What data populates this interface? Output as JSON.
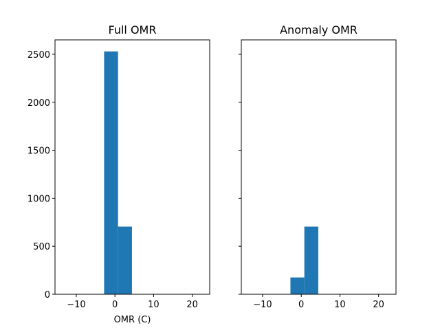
{
  "chart_data": [
    {
      "type": "bar",
      "title": "Full OMR",
      "xlabel": "OMR (C)",
      "ylabel": "",
      "xlim": [
        -15.5,
        24.5
      ],
      "ylim": [
        0,
        2650
      ],
      "xticks": [
        -10,
        0,
        10,
        20
      ],
      "yticks": [
        0,
        500,
        1000,
        1500,
        2000,
        2500
      ],
      "show_yticklabels": true,
      "color": "#1f77b4",
      "bins": [
        {
          "x0": -2.8,
          "x1": 0.8,
          "value": 2530
        },
        {
          "x0": 0.8,
          "x1": 4.4,
          "value": 705
        }
      ]
    },
    {
      "type": "bar",
      "title": "Anomaly OMR",
      "xlabel": "",
      "ylabel": "",
      "xlim": [
        -15.5,
        24.5
      ],
      "ylim": [
        0,
        2650
      ],
      "xticks": [
        -10,
        0,
        10,
        20
      ],
      "yticks": [
        0,
        500,
        1000,
        1500,
        2000,
        2500
      ],
      "show_yticklabels": false,
      "color": "#1f77b4",
      "bins": [
        {
          "x0": -2.8,
          "x1": 0.8,
          "value": 175
        },
        {
          "x0": 0.8,
          "x1": 4.4,
          "value": 705
        }
      ]
    }
  ]
}
